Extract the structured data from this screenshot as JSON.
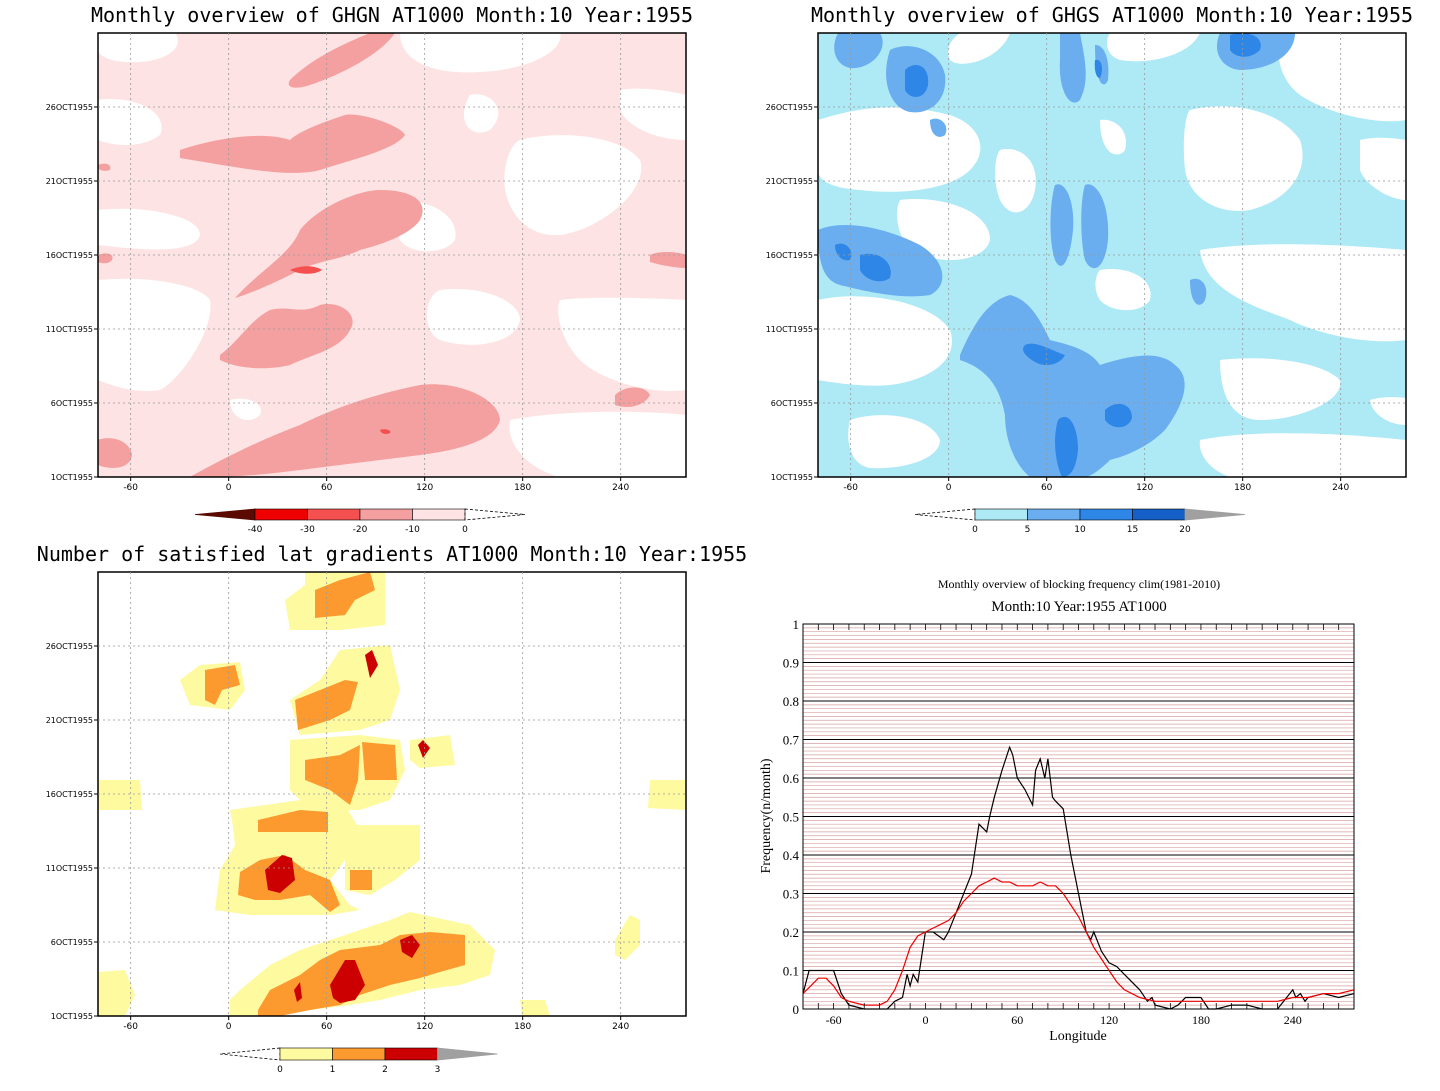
{
  "chart_data": [
    {
      "id": "ghgn",
      "type": "heatmap",
      "title": "Monthly overview of GHGN AT1000 Month:10 Year:1955",
      "x_ticks": [
        -60,
        0,
        60,
        120,
        180,
        240
      ],
      "xlim": [
        -80,
        280
      ],
      "y_ticks": [
        "1OCT1955",
        "6OCT1955",
        "11OCT1955",
        "16OCT1955",
        "21OCT1955",
        "26OCT1955"
      ],
      "y_tick_values": [
        1,
        6,
        11,
        16,
        21,
        26
      ],
      "ylim": [
        1,
        31
      ],
      "colorbar": {
        "labels": [
          "-40",
          "-30",
          "-20",
          "-10",
          "0"
        ],
        "colors": [
          "#5a0a00",
          "#ee0000",
          "#f45050",
          "#f5a0a0",
          "#fde3e3"
        ]
      },
      "background_color": "#fde3e3"
    },
    {
      "id": "ghgs",
      "type": "heatmap",
      "title": "Monthly overview of GHGS AT1000 Month:10 Year:1955",
      "x_ticks": [
        -60,
        0,
        60,
        120,
        180,
        240
      ],
      "xlim": [
        -80,
        280
      ],
      "y_ticks": [
        "1OCT1955",
        "6OCT1955",
        "11OCT1955",
        "16OCT1955",
        "21OCT1955",
        "26OCT1955"
      ],
      "y_tick_values": [
        1,
        6,
        11,
        16,
        21,
        26
      ],
      "ylim": [
        1,
        31
      ],
      "colorbar": {
        "labels": [
          "0",
          "5",
          "10",
          "15",
          "20"
        ],
        "colors": [
          "#aeeaf6",
          "#6aaef0",
          "#2e86e6",
          "#1560c8",
          "#a0a0a0"
        ]
      },
      "background_color": "#aeeaf6"
    },
    {
      "id": "gradients",
      "type": "heatmap",
      "title": "Number of satisfied lat gradients AT1000 Month:10 Year:1955",
      "x_ticks": [
        -60,
        0,
        60,
        120,
        180,
        240
      ],
      "xlim": [
        -80,
        280
      ],
      "y_ticks": [
        "1OCT1955",
        "6OCT1955",
        "11OCT1955",
        "16OCT1955",
        "21OCT1955",
        "26OCT1955"
      ],
      "y_tick_values": [
        1,
        6,
        11,
        16,
        21,
        26
      ],
      "ylim": [
        1,
        31
      ],
      "colorbar": {
        "labels": [
          "0",
          "1",
          "2",
          "3"
        ],
        "colors": [
          "#fefaa0",
          "#fc9a30",
          "#cc0000",
          "#a0a0a0"
        ]
      }
    },
    {
      "id": "blocking",
      "type": "line",
      "title": "Monthly overview of blocking frequency clim(1981-2010)",
      "subtitle": "Month:10 Year:1955  AT1000",
      "xlabel": "Longitude",
      "ylabel": "Frequency(n/month)",
      "xlim": [
        -80,
        280
      ],
      "ylim": [
        0,
        1
      ],
      "x_ticks": [
        -60,
        0,
        60,
        120,
        180,
        240
      ],
      "y_ticks": [
        "0",
        "0.1",
        "0.2",
        "0.3",
        "0.4",
        "0.5",
        "0.6",
        "0.7",
        "0.8",
        "0.9",
        "1"
      ],
      "series": [
        {
          "color": "#000000",
          "x": [
            -80,
            -76,
            -60,
            -55,
            -50,
            -40,
            -30,
            -25,
            -20,
            -15,
            -12,
            -10,
            -8,
            -5,
            0,
            5,
            12,
            15,
            20,
            25,
            30,
            35,
            40,
            42,
            45,
            50,
            55,
            57,
            60,
            65,
            70,
            72,
            75,
            78,
            80,
            83,
            85,
            90,
            95,
            100,
            105,
            108,
            110,
            115,
            120,
            125,
            130,
            140,
            145,
            148,
            150,
            160,
            165,
            170,
            175,
            180,
            185,
            190,
            200,
            210,
            220,
            230,
            240,
            242,
            245,
            248,
            250,
            260,
            270,
            280
          ],
          "y": [
            0.04,
            0.1,
            0.1,
            0.04,
            0.01,
            0.0,
            0.0,
            0.0,
            0.02,
            0.03,
            0.09,
            0.06,
            0.09,
            0.07,
            0.2,
            0.2,
            0.18,
            0.2,
            0.25,
            0.3,
            0.35,
            0.48,
            0.46,
            0.5,
            0.55,
            0.62,
            0.68,
            0.66,
            0.6,
            0.57,
            0.53,
            0.62,
            0.65,
            0.6,
            0.65,
            0.55,
            0.54,
            0.52,
            0.4,
            0.3,
            0.2,
            0.18,
            0.2,
            0.15,
            0.12,
            0.11,
            0.09,
            0.05,
            0.02,
            0.03,
            0.01,
            0.0,
            0.01,
            0.03,
            0.03,
            0.03,
            0.0,
            0.0,
            0.01,
            0.01,
            0.0,
            0.0,
            0.05,
            0.03,
            0.04,
            0.02,
            0.03,
            0.04,
            0.03,
            0.04
          ]
        },
        {
          "color": "#ee0000",
          "x": [
            -80,
            -75,
            -70,
            -65,
            -60,
            -55,
            -50,
            -40,
            -30,
            -25,
            -20,
            -15,
            -10,
            -5,
            0,
            5,
            10,
            15,
            20,
            25,
            30,
            35,
            40,
            45,
            50,
            55,
            60,
            65,
            70,
            75,
            80,
            85,
            90,
            95,
            100,
            105,
            110,
            115,
            120,
            125,
            130,
            140,
            150,
            160,
            170,
            180,
            190,
            200,
            210,
            220,
            230,
            240,
            250,
            260,
            270,
            280
          ],
          "y": [
            0.04,
            0.06,
            0.08,
            0.08,
            0.06,
            0.03,
            0.02,
            0.01,
            0.01,
            0.02,
            0.05,
            0.1,
            0.16,
            0.19,
            0.2,
            0.21,
            0.22,
            0.23,
            0.25,
            0.28,
            0.3,
            0.32,
            0.33,
            0.34,
            0.33,
            0.33,
            0.32,
            0.32,
            0.32,
            0.33,
            0.32,
            0.32,
            0.3,
            0.27,
            0.24,
            0.2,
            0.16,
            0.13,
            0.1,
            0.07,
            0.05,
            0.03,
            0.02,
            0.02,
            0.02,
            0.02,
            0.02,
            0.02,
            0.02,
            0.02,
            0.02,
            0.03,
            0.03,
            0.04,
            0.04,
            0.05
          ]
        }
      ]
    }
  ]
}
